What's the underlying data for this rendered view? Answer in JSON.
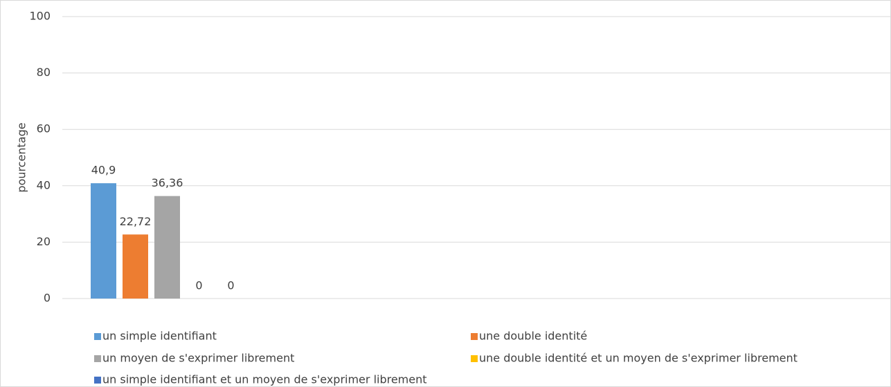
{
  "chart_data": {
    "type": "bar",
    "y_label": "pourcentage",
    "categories": [
      null
    ],
    "series": [
      {
        "name": "un simple identifiant",
        "color": "#5b9bd5",
        "values": [
          40.9
        ],
        "value_labels": [
          "40,9"
        ]
      },
      {
        "name": "une double identité",
        "color": "#ed7d31",
        "values": [
          22.72
        ],
        "value_labels": [
          "22,72"
        ]
      },
      {
        "name": "un moyen de s'exprimer librement",
        "color": "#a5a5a5",
        "values": [
          36.36
        ],
        "value_labels": [
          "36,36"
        ]
      },
      {
        "name": "une double identité et un moyen de s'exprimer librement",
        "color": "#ffc000",
        "values": [
          0
        ],
        "value_labels": [
          "0"
        ]
      },
      {
        "name": "un simple identifiant et un moyen de s'exprimer librement",
        "color": "#4472c4",
        "values": [
          0
        ],
        "value_labels": [
          "0"
        ]
      }
    ],
    "ylim": [
      0,
      100
    ],
    "yticks": [
      0,
      20,
      40,
      60,
      80,
      100
    ],
    "grid": true
  }
}
